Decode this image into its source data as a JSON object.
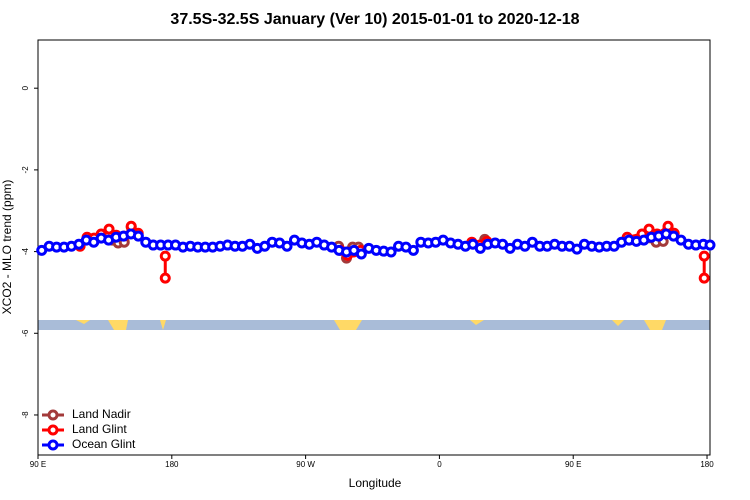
{
  "chart_data": {
    "type": "line",
    "title": "37.5S-32.5S January (Ver 10)   2015-01-01 to 2020-12-18",
    "x_label": "Longitude",
    "y_label": "XCO2 - MLO trend (ppm)",
    "xlim": [
      90,
      542
    ],
    "ylim": [
      -8.98,
      1.18
    ],
    "xticks": [
      {
        "value": 90,
        "label": "90 E"
      },
      180,
      {
        "value": 270,
        "label": "90 W"
      },
      {
        "value": 360,
        "label": "0"
      },
      {
        "value": 450,
        "label": "90 E"
      },
      {
        "value": 540,
        "label": "180"
      }
    ],
    "yticks": [
      0,
      -2,
      -4,
      -6,
      -8
    ],
    "legend": "bottomleft",
    "series": [
      {
        "name": "Land Nadir",
        "color": "#a33a3a",
        "x": [
          139.9,
          143.9,
          148,
          152.7,
          null,
          292.2,
          297.5,
          301.6,
          305.6,
          null,
          390.5,
          null,
          487.6,
          505.8,
          510.5,
          513.8
        ],
        "values": [
          -3.72,
          -3.79,
          -3.77,
          -3.4,
          null,
          -3.87,
          -4.16,
          -3.89,
          -3.89,
          null,
          -3.7,
          null,
          -3.72,
          -3.77,
          -3.75,
          -3.4
        ]
      },
      {
        "name": "Land Glint",
        "color": "#ff0000",
        "x": [
          118.3,
          123,
          127.7,
          132.5,
          137.8,
          142.6,
          148,
          152.7,
          157.4,
          null,
          175.6,
          175.6,
          null,
          293.5,
          298.2,
          302.3,
          307,
          null,
          381.8,
          387.2,
          391.9,
          null,
          486.3,
          496.3,
          501,
          506.4,
          513.8,
          517.9,
          null,
          538.1,
          538.1
        ],
        "values": [
          -3.87,
          -3.65,
          -3.67,
          -3.57,
          -3.45,
          -3.6,
          -3.62,
          -3.38,
          -3.55,
          null,
          -4.11,
          -4.65,
          null,
          -3.97,
          -4.09,
          -4.01,
          -3.97,
          null,
          -3.77,
          -3.84,
          -3.75,
          null,
          -3.65,
          -3.57,
          -3.45,
          -3.57,
          -3.38,
          -3.55,
          null,
          -4.11,
          -4.65
        ]
      },
      {
        "name": "Ocean Glint",
        "color": "#0000ff",
        "x": [
          92.5,
          97.5,
          102.5,
          107.5,
          112.5,
          117.5,
          122.5,
          127.5,
          132.5,
          137.5,
          142.5,
          147.5,
          152.5,
          157.5,
          162.5,
          167.5,
          172.5,
          177.5,
          182.5,
          187.5,
          192.5,
          197.5,
          202.5,
          207.5,
          212.5,
          217.5,
          222.5,
          227.5,
          232.5,
          237.5,
          242.5,
          247.5,
          252.5,
          257.5,
          262.5,
          267.5,
          272.5,
          277.5,
          282.5,
          287.5,
          292.5,
          297.5,
          302.5,
          307.5,
          312.5,
          317.5,
          322.5,
          327.5,
          332.5,
          337.5,
          342.5,
          347.5,
          352.5,
          357.5,
          362.5,
          367.5,
          372.5,
          377.5,
          382.5,
          387.5,
          392.5,
          397.5,
          402.5,
          407.5,
          412.5,
          417.5,
          422.5,
          427.5,
          432.5,
          437.5,
          442.5,
          447.5,
          452.5,
          457.5,
          462.5,
          467.5,
          472.5,
          477.5,
          482.5,
          487.5,
          492.5,
          497.5,
          502.5,
          507.5,
          512.5,
          517.5,
          522.5,
          527.5,
          532.5,
          537.5,
          542
        ],
        "values": [
          -3.97,
          -3.87,
          -3.89,
          -3.89,
          -3.87,
          -3.82,
          -3.72,
          -3.77,
          -3.67,
          -3.72,
          -3.65,
          -3.62,
          -3.57,
          -3.62,
          -3.77,
          -3.84,
          -3.84,
          -3.84,
          -3.84,
          -3.89,
          -3.87,
          -3.89,
          -3.89,
          -3.89,
          -3.87,
          -3.84,
          -3.87,
          -3.87,
          -3.82,
          -3.92,
          -3.87,
          -3.77,
          -3.79,
          -3.87,
          -3.72,
          -3.79,
          -3.82,
          -3.77,
          -3.84,
          -3.89,
          -3.97,
          -4.01,
          -3.97,
          -4.06,
          -3.92,
          -3.97,
          -3.99,
          -4.01,
          -3.87,
          -3.89,
          -3.97,
          -3.77,
          -3.79,
          -3.77,
          -3.72,
          -3.79,
          -3.82,
          -3.87,
          -3.82,
          -3.92,
          -3.82,
          -3.79,
          -3.82,
          -3.92,
          -3.82,
          -3.87,
          -3.77,
          -3.87,
          -3.87,
          -3.82,
          -3.87,
          -3.87,
          -3.94,
          -3.82,
          -3.87,
          -3.89,
          -3.87,
          -3.87,
          -3.77,
          -3.72,
          -3.75,
          -3.72,
          -3.65,
          -3.62,
          -3.57,
          -3.62,
          -3.72,
          -3.82,
          -3.84,
          -3.82,
          -3.84
        ]
      }
    ]
  }
}
